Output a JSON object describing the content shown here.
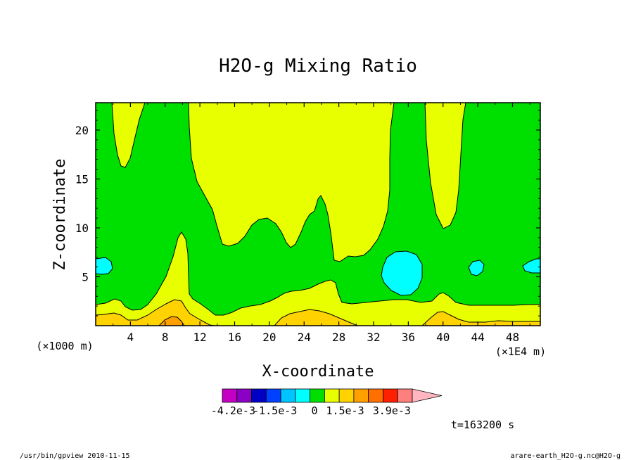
{
  "chart_data": {
    "type": "heatmap",
    "title": "H2O-g Mixing Ratio",
    "xlabel": "X-coordinate",
    "ylabel": "Z-coordinate",
    "x_unit_left": "(×1000 m)",
    "x_unit_right": "(×1E4 m)",
    "xlim": [
      0,
      51.2
    ],
    "ylim": [
      0,
      22.8
    ],
    "x_ticks": [
      4,
      8,
      12,
      16,
      20,
      24,
      28,
      32,
      36,
      40,
      44,
      48
    ],
    "y_ticks": [
      5,
      10,
      15,
      20
    ],
    "time_label": "t=163200 s",
    "colorbar": {
      "colors": [
        "#c400c4",
        "#8a00c4",
        "#0000c4",
        "#0040ff",
        "#00c4ff",
        "#00ffff",
        "#00e000",
        "#e8ff00",
        "#ffd200",
        "#ffa000",
        "#ff7000",
        "#ff2000",
        "#ff7f7f",
        "#ffb6c1"
      ],
      "labels": [
        "-4.2e-3",
        "-1.5e-3",
        "0",
        "1.5e-3",
        "3.9e-3"
      ]
    },
    "regions": [
      {
        "level": "yellow",
        "description": "upper yellow region (values above 0)"
      },
      {
        "level": "green",
        "description": "mid-level green band"
      },
      {
        "level": "cyan",
        "description": "isolated negative pockets"
      },
      {
        "level": "orange",
        "description": "near-surface maxima"
      }
    ]
  },
  "footer": {
    "left": "/usr/bin/gpview  2010-11-15",
    "right": "arare-earth_H2O-g.nc@H2O-g"
  }
}
